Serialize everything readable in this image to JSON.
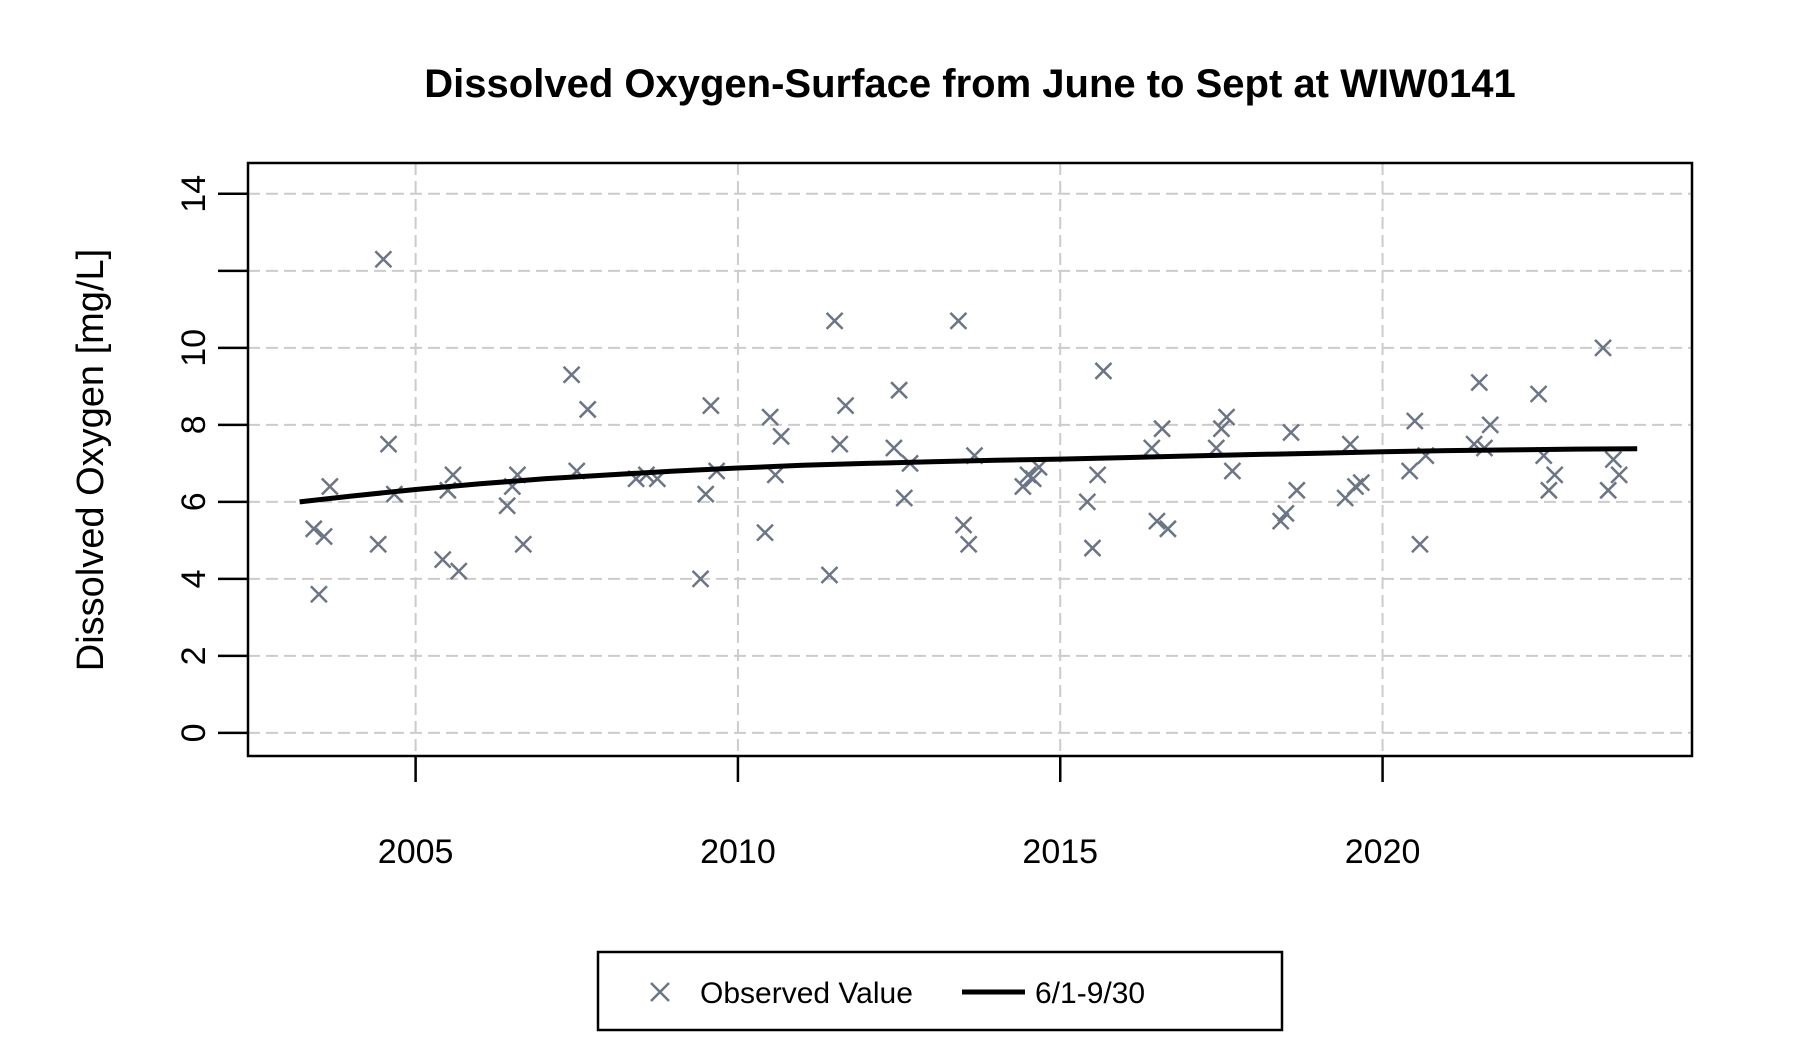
{
  "chart_data": {
    "type": "scatter",
    "title": "Dissolved Oxygen-Surface from June to Sept at WIW0141",
    "xlabel": "",
    "ylabel": "Dissolved Oxygen [mg/L]",
    "xlim": [
      2002.4,
      2024.8
    ],
    "ylim": [
      -0.6,
      14.8
    ],
    "x_ticks": [
      2005,
      2010,
      2015,
      2020
    ],
    "y_ticks": [
      0,
      2,
      4,
      6,
      8,
      10,
      12,
      14
    ],
    "y_tick_labels": [
      "0",
      "2",
      "4",
      "6",
      "8",
      "10",
      "",
      "14"
    ],
    "grid": true,
    "legend_position": "bottom-center",
    "series": [
      {
        "name": "Observed Value",
        "kind": "points",
        "marker": "x",
        "color": "#6b7585",
        "points": [
          [
            2003.42,
            5.3
          ],
          [
            2003.5,
            3.6
          ],
          [
            2003.58,
            5.1
          ],
          [
            2003.67,
            6.4
          ],
          [
            2004.42,
            4.9
          ],
          [
            2004.5,
            12.3
          ],
          [
            2004.58,
            7.5
          ],
          [
            2004.67,
            6.2
          ],
          [
            2005.42,
            4.5
          ],
          [
            2005.5,
            6.3
          ],
          [
            2005.58,
            6.7
          ],
          [
            2005.67,
            4.2
          ],
          [
            2006.42,
            5.9
          ],
          [
            2006.5,
            6.4
          ],
          [
            2006.58,
            6.7
          ],
          [
            2006.67,
            4.9
          ],
          [
            2007.42,
            9.3
          ],
          [
            2007.5,
            6.8
          ],
          [
            2007.67,
            8.4
          ],
          [
            2008.42,
            6.6
          ],
          [
            2008.58,
            6.7
          ],
          [
            2008.75,
            6.6
          ],
          [
            2009.42,
            4.0
          ],
          [
            2009.5,
            6.2
          ],
          [
            2009.58,
            8.5
          ],
          [
            2009.67,
            6.8
          ],
          [
            2010.42,
            5.2
          ],
          [
            2010.5,
            8.2
          ],
          [
            2010.58,
            6.7
          ],
          [
            2010.67,
            7.7
          ],
          [
            2011.42,
            4.1
          ],
          [
            2011.5,
            10.7
          ],
          [
            2011.58,
            7.5
          ],
          [
            2011.67,
            8.5
          ],
          [
            2012.42,
            7.4
          ],
          [
            2012.5,
            8.9
          ],
          [
            2012.58,
            6.1
          ],
          [
            2012.67,
            7.0
          ],
          [
            2013.42,
            10.7
          ],
          [
            2013.5,
            5.4
          ],
          [
            2013.58,
            4.9
          ],
          [
            2013.67,
            7.2
          ],
          [
            2014.42,
            6.4
          ],
          [
            2014.5,
            6.7
          ],
          [
            2014.58,
            6.6
          ],
          [
            2014.67,
            6.9
          ],
          [
            2015.42,
            6.0
          ],
          [
            2015.5,
            4.8
          ],
          [
            2015.58,
            6.7
          ],
          [
            2015.67,
            9.4
          ],
          [
            2016.42,
            7.4
          ],
          [
            2016.5,
            5.5
          ],
          [
            2016.58,
            7.9
          ],
          [
            2016.67,
            5.3
          ],
          [
            2017.42,
            7.4
          ],
          [
            2017.5,
            7.9
          ],
          [
            2017.58,
            8.2
          ],
          [
            2017.67,
            6.8
          ],
          [
            2018.42,
            5.5
          ],
          [
            2018.5,
            5.7
          ],
          [
            2018.58,
            7.8
          ],
          [
            2018.67,
            6.3
          ],
          [
            2019.42,
            6.1
          ],
          [
            2019.5,
            7.5
          ],
          [
            2019.58,
            6.4
          ],
          [
            2019.67,
            6.5
          ],
          [
            2020.42,
            6.8
          ],
          [
            2020.5,
            8.1
          ],
          [
            2020.58,
            4.9
          ],
          [
            2020.67,
            7.2
          ],
          [
            2021.42,
            7.5
          ],
          [
            2021.5,
            9.1
          ],
          [
            2021.58,
            7.4
          ],
          [
            2021.67,
            8.0
          ],
          [
            2022.42,
            8.8
          ],
          [
            2022.5,
            7.2
          ],
          [
            2022.58,
            6.3
          ],
          [
            2022.67,
            6.7
          ],
          [
            2023.42,
            10.0
          ],
          [
            2023.5,
            6.3
          ],
          [
            2023.58,
            7.1
          ],
          [
            2023.67,
            6.7
          ]
        ]
      },
      {
        "name": "6/1-9/30",
        "kind": "line",
        "color": "#000000",
        "points": [
          [
            2003.2,
            6.0
          ],
          [
            2004.0,
            6.15
          ],
          [
            2005.0,
            6.32
          ],
          [
            2006.0,
            6.47
          ],
          [
            2007.0,
            6.6
          ],
          [
            2008.0,
            6.7
          ],
          [
            2009.0,
            6.8
          ],
          [
            2010.0,
            6.88
          ],
          [
            2011.0,
            6.95
          ],
          [
            2012.0,
            7.0
          ],
          [
            2013.0,
            7.04
          ],
          [
            2014.0,
            7.08
          ],
          [
            2015.0,
            7.11
          ],
          [
            2016.0,
            7.15
          ],
          [
            2017.0,
            7.19
          ],
          [
            2018.0,
            7.23
          ],
          [
            2019.0,
            7.26
          ],
          [
            2020.0,
            7.3
          ],
          [
            2021.0,
            7.33
          ],
          [
            2022.0,
            7.35
          ],
          [
            2023.0,
            7.37
          ],
          [
            2023.95,
            7.38
          ]
        ]
      }
    ]
  }
}
